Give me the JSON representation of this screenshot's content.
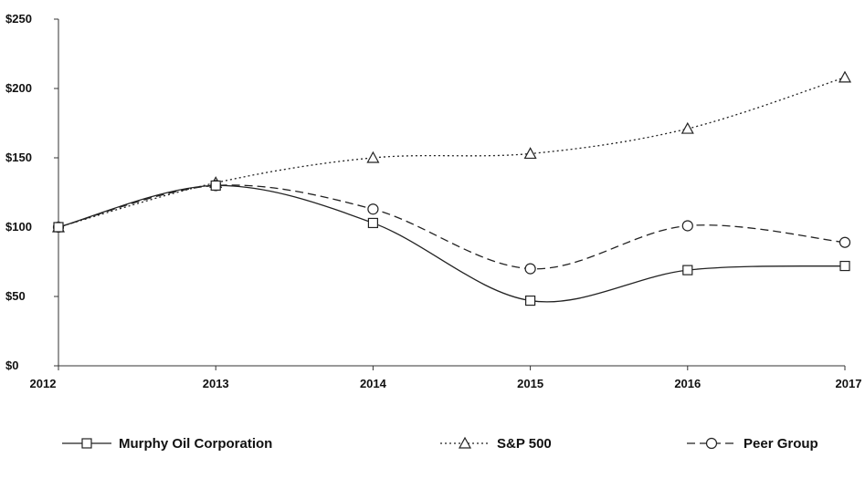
{
  "chart_data": {
    "type": "line",
    "title": "",
    "xlabel": "",
    "ylabel": "",
    "categories": [
      "2012",
      "2013",
      "2014",
      "2015",
      "2016",
      "2017"
    ],
    "y_tick_labels": [
      "$0",
      "$50",
      "$100",
      "$150",
      "$200",
      "$250"
    ],
    "y_ticks": [
      0,
      50,
      100,
      150,
      200,
      250
    ],
    "ylim": [
      0,
      250
    ],
    "grid": false,
    "legend_position": "bottom",
    "series": [
      {
        "name": "Murphy Oil Corporation",
        "values": [
          100,
          130,
          103,
          47,
          69,
          72
        ],
        "marker": "square",
        "line_style": "solid",
        "color": "#222222"
      },
      {
        "name": "S&P 500",
        "values": [
          100,
          132,
          150,
          153,
          171,
          208
        ],
        "marker": "triangle",
        "line_style": "dotted",
        "color": "#222222"
      },
      {
        "name": "Peer Group",
        "values": [
          100,
          130,
          113,
          70,
          101,
          89
        ],
        "marker": "circle",
        "line_style": "dashed",
        "color": "#222222"
      }
    ]
  }
}
